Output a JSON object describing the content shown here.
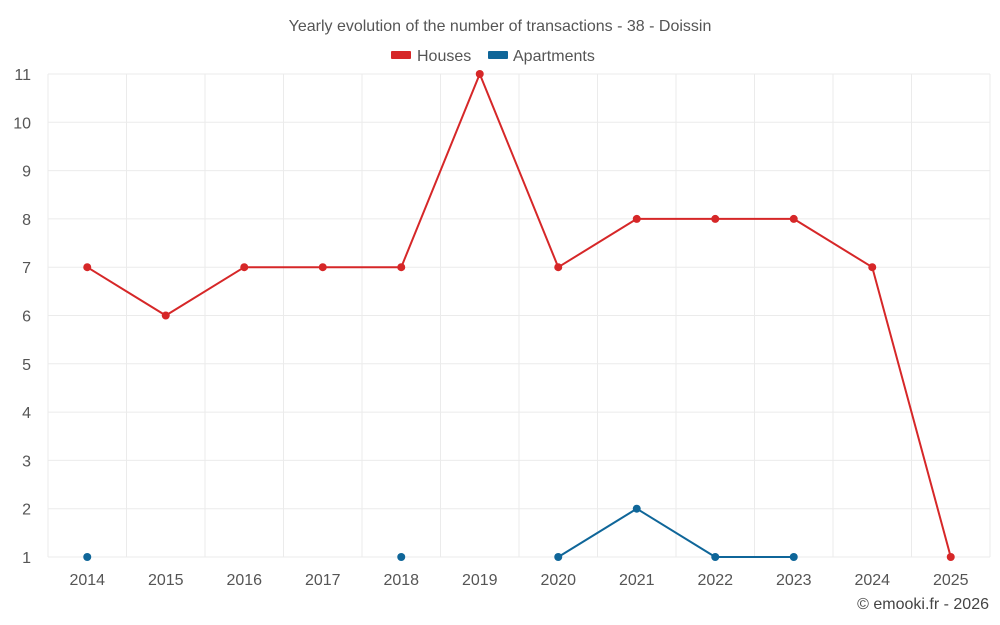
{
  "chart_data": {
    "type": "line",
    "title": "Yearly evolution of the number of transactions - 38 - Doissin",
    "xlabel": "",
    "ylabel": "",
    "categories": [
      "2014",
      "2015",
      "2016",
      "2017",
      "2018",
      "2019",
      "2020",
      "2021",
      "2022",
      "2023",
      "2024",
      "2025"
    ],
    "ylim": [
      1,
      11
    ],
    "yticks": [
      "1",
      "2",
      "3",
      "4",
      "5",
      "6",
      "7",
      "8",
      "9",
      "10",
      "11"
    ],
    "grid": true,
    "legend_position": "top-center",
    "series": [
      {
        "name": "Houses",
        "color": "#d62728",
        "values": [
          7,
          6,
          7,
          7,
          7,
          11,
          7,
          8,
          8,
          8,
          7,
          1
        ]
      },
      {
        "name": "Apartments",
        "color": "#0f6699",
        "values": [
          1,
          null,
          null,
          null,
          1,
          null,
          1,
          2,
          1,
          1,
          null,
          null
        ]
      }
    ]
  },
  "credit": "© emooki.fr - 2026"
}
